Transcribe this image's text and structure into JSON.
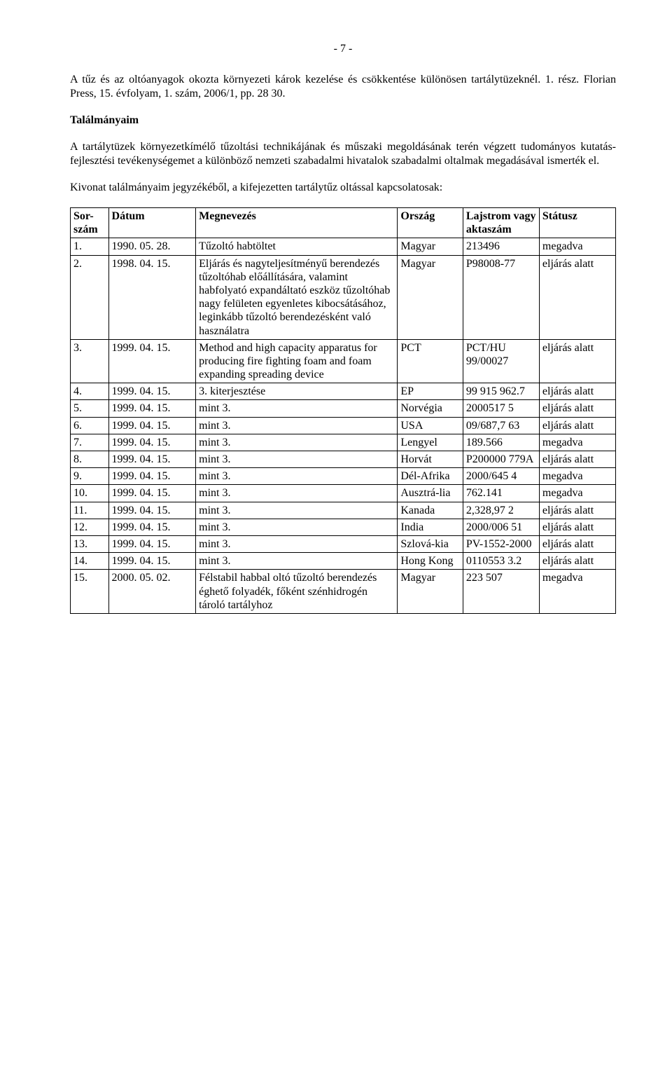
{
  "page_number": "- 7 -",
  "paragraph1": "A tűz és az oltóanyagok okozta környezeti károk kezelése és csökkentése különösen tartálytüzeknél. 1. rész. Florian Press, 15. évfolyam, 1. szám, 2006/1, pp. 28 30.",
  "heading": "Találmányaim",
  "paragraph2": "A tartálytüzek környezetkímélő tűzoltási technikájának és műszaki megoldásának terén végzett tudományos kutatás-fejlesztési tevékenységemet a különböző nemzeti szabadalmi hivatalok szabadalmi oltalmak megadásával ismerték el.",
  "paragraph3": "Kivonat találmányaim jegyzékéből, a kifejezetten tartálytűz oltással kapcsolatosak:",
  "columns": [
    "Sor-szám",
    "Dátum",
    "Megnevezés",
    "Ország",
    "Lajstrom vagy aktaszám",
    "Státusz"
  ],
  "rows": [
    {
      "n": "1.",
      "d": "1990. 05. 28.",
      "m": "Tűzoltó habtöltet",
      "o": "Magyar",
      "l": "213496",
      "s": "megadva"
    },
    {
      "n": "2.",
      "d": "1998. 04. 15.",
      "m": "Eljárás és nagyteljesítményű berendezés tűzoltóhab előállítására, valamint habfolyató expandáltató eszköz tűzoltóhab nagy felületen egyenletes kibocsátásához, leginkább tűzoltó berendezésként való használatra",
      "o": "Magyar",
      "l": "P98008-77",
      "s": "eljárás alatt"
    },
    {
      "n": "3.",
      "d": "1999. 04. 15.",
      "m": "Method and high capacity apparatus for producing fire fighting foam and foam expanding spreading device",
      "o": "PCT",
      "l": "PCT/HU 99/00027",
      "s": "eljárás alatt"
    },
    {
      "n": "4.",
      "d": "1999. 04. 15.",
      "m": "3. kiterjesztése",
      "o": "EP",
      "l": "99 915 962.7",
      "s": "eljárás alatt"
    },
    {
      "n": "5.",
      "d": "1999. 04. 15.",
      "m": "mint 3.",
      "o": "Norvégia",
      "l": "2000517 5",
      "s": "eljárás alatt"
    },
    {
      "n": "6.",
      "d": "1999. 04. 15.",
      "m": "mint 3.",
      "o": "USA",
      "l": "09/687,7 63",
      "s": "eljárás alatt"
    },
    {
      "n": "7.",
      "d": "1999. 04. 15.",
      "m": "mint 3.",
      "o": "Lengyel",
      "l": "189.566",
      "s": "megadva"
    },
    {
      "n": "8.",
      "d": "1999. 04. 15.",
      "m": "mint 3.",
      "o": "Horvát",
      "l": "P200000 779A",
      "s": "eljárás alatt"
    },
    {
      "n": "9.",
      "d": "1999. 04. 15.",
      "m": "mint 3.",
      "o": "Dél-Afrika",
      "l": "2000/645 4",
      "s": "megadva"
    },
    {
      "n": "10.",
      "d": "1999. 04. 15.",
      "m": "mint 3.",
      "o": "Ausztrá-lia",
      "l": "762.141",
      "s": "megadva"
    },
    {
      "n": "11.",
      "d": "1999. 04. 15.",
      "m": "mint 3.",
      "o": "Kanada",
      "l": "2,328,97 2",
      "s": "eljárás alatt"
    },
    {
      "n": "12.",
      "d": "1999. 04. 15.",
      "m": "mint 3.",
      "o": "India",
      "l": "2000/006 51",
      "s": "eljárás alatt"
    },
    {
      "n": "13.",
      "d": "1999. 04. 15.",
      "m": "mint 3.",
      "o": "Szlová-kia",
      "l": "PV-1552-2000",
      "s": "eljárás alatt"
    },
    {
      "n": "14.",
      "d": "1999. 04. 15.",
      "m": "mint 3.",
      "o": "Hong Kong",
      "l": "0110553 3.2",
      "s": "eljárás alatt"
    },
    {
      "n": "15.",
      "d": "2000. 05. 02.",
      "m": "Félstabil habbal oltó tűzoltó berendezés éghető folyadék, főként szénhidrogén tároló tartályhoz",
      "o": "Magyar",
      "l": "223 507",
      "s": "megadva"
    }
  ]
}
